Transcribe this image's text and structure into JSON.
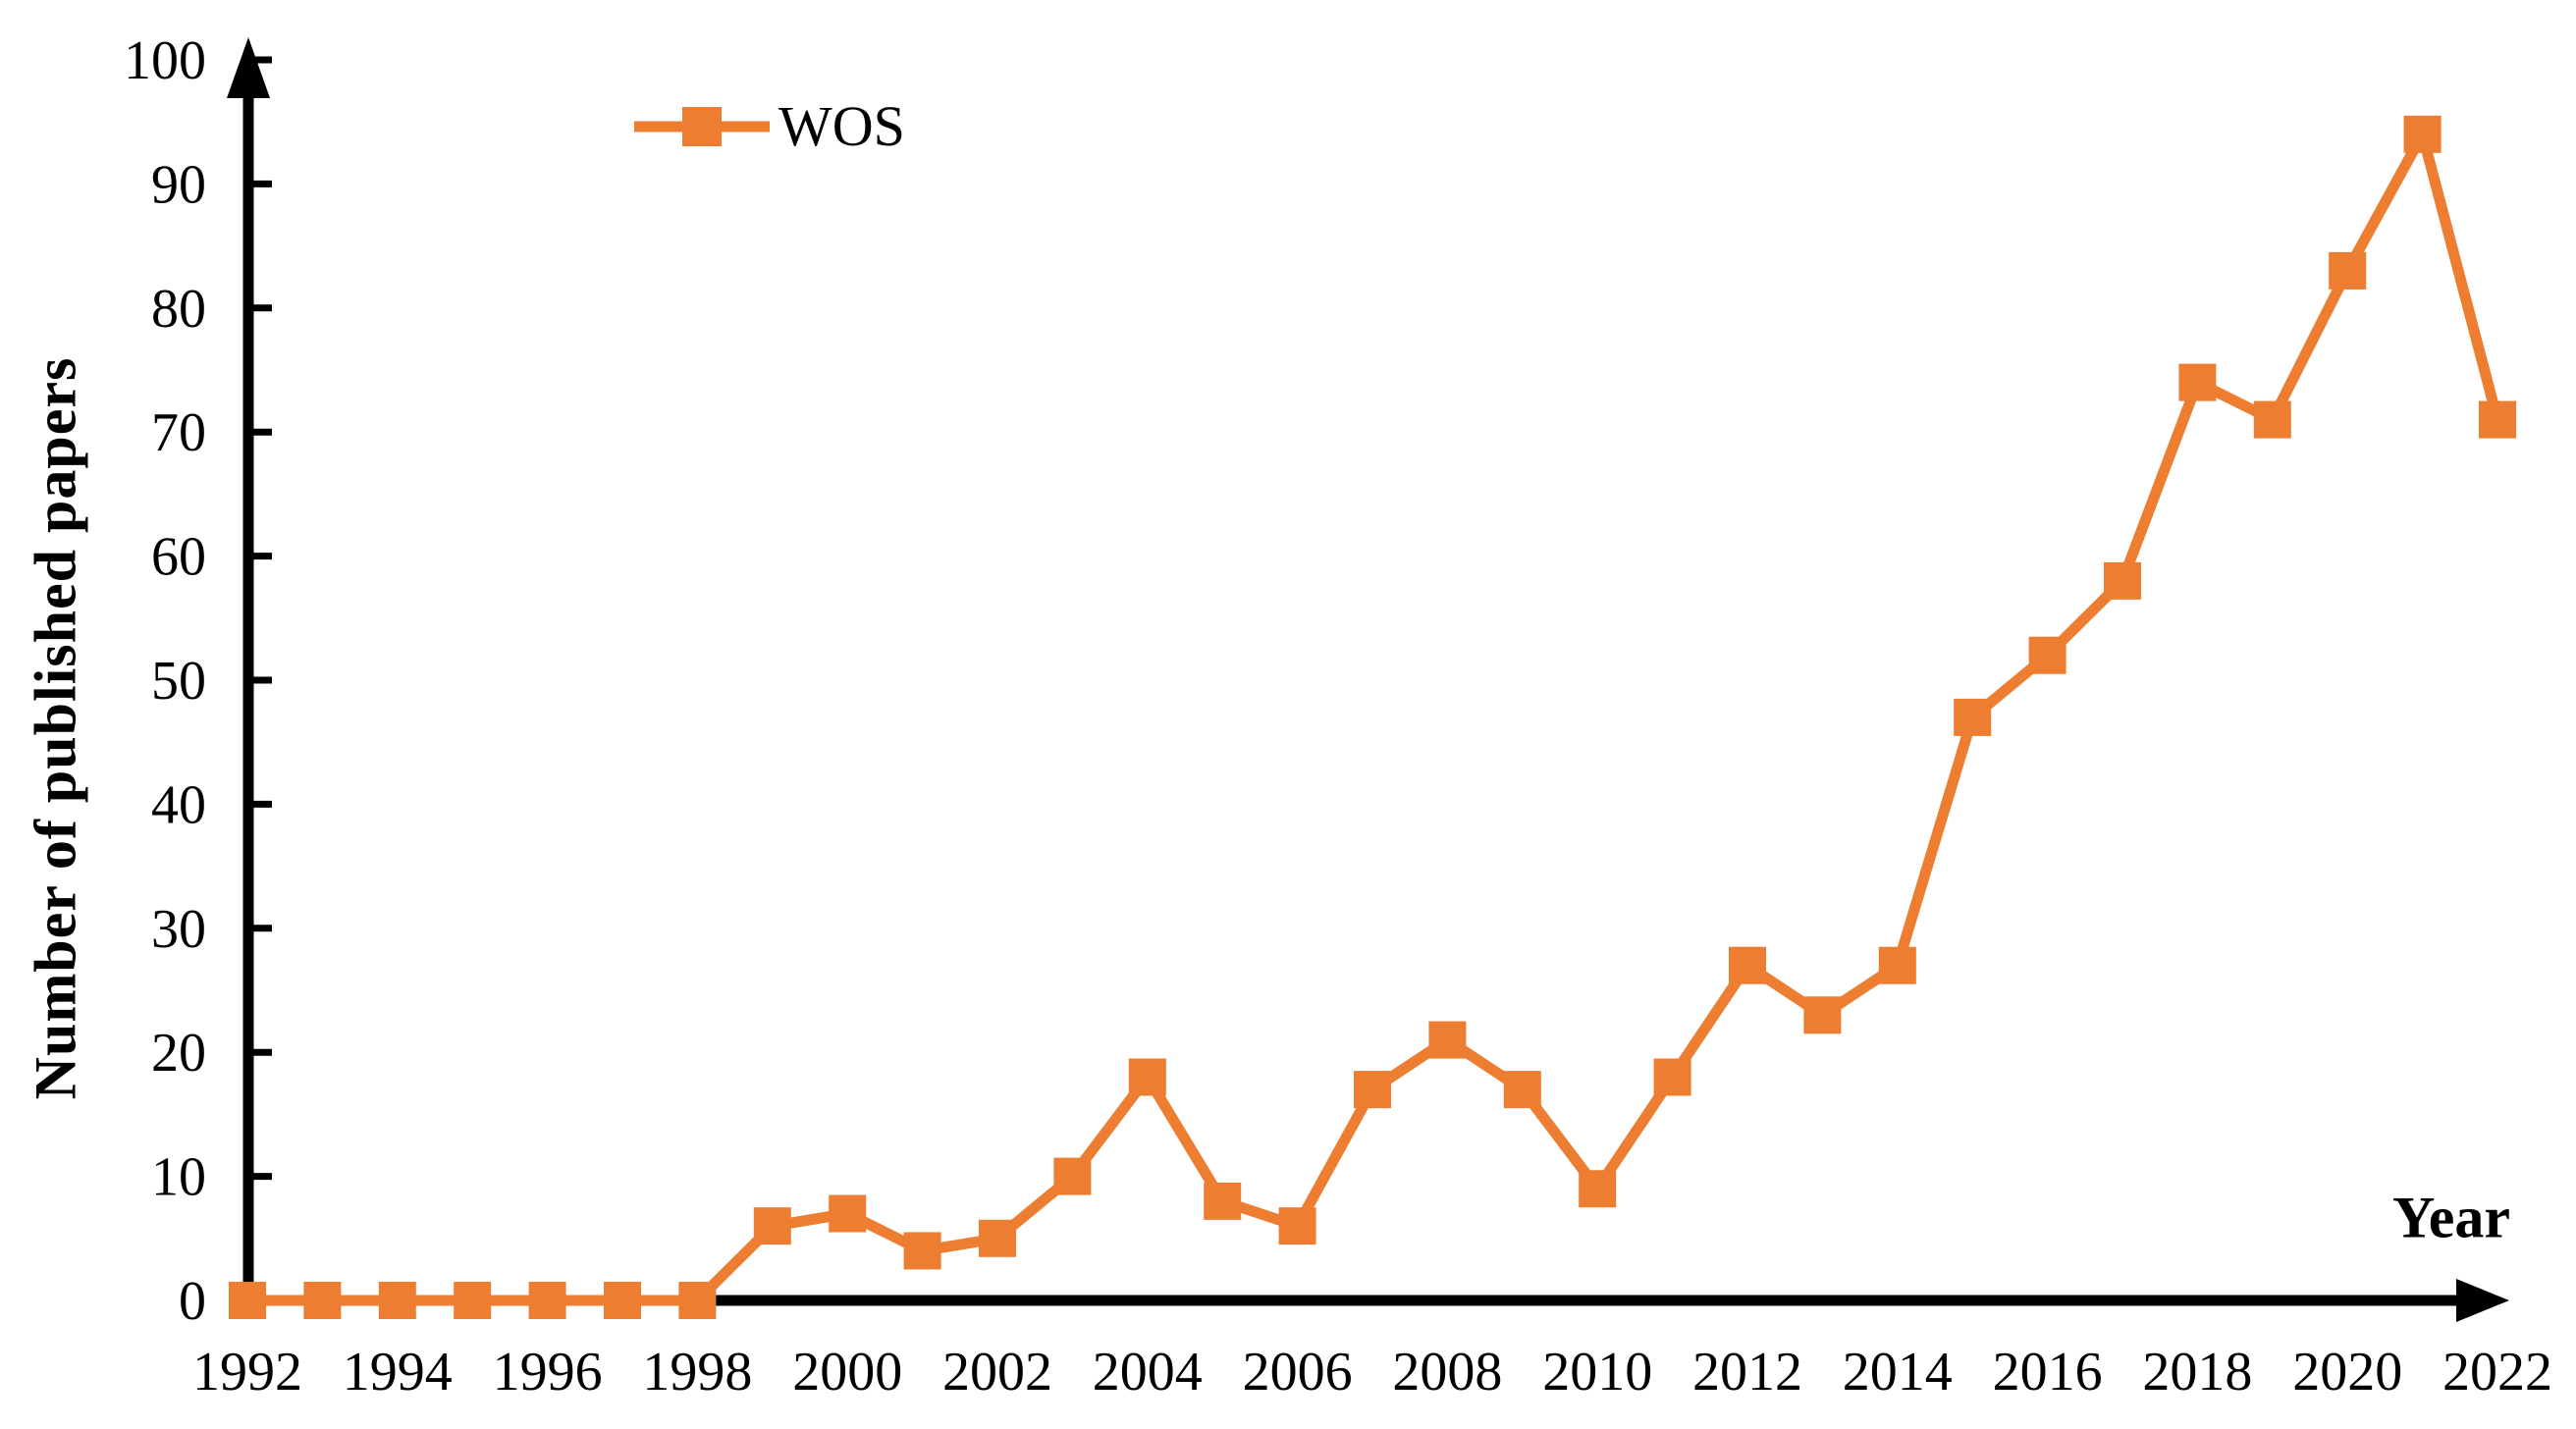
{
  "figure": {
    "legend_label": "WOS",
    "y_axis_title": "Number of published papers",
    "x_axis_title": "Year"
  },
  "colors": {
    "series": "#ED7D31",
    "axis": "#000000",
    "background": "#FFFFFF"
  },
  "chart_data": {
    "type": "line",
    "title": "",
    "xlabel": "Year",
    "ylabel": "Number of published papers",
    "x": [
      1992,
      1993,
      1994,
      1995,
      1996,
      1997,
      1998,
      1999,
      2000,
      2001,
      2002,
      2003,
      2004,
      2005,
      2006,
      2007,
      2008,
      2009,
      2010,
      2011,
      2012,
      2013,
      2014,
      2015,
      2016,
      2017,
      2018,
      2019,
      2020,
      2021,
      2022
    ],
    "series": [
      {
        "name": "WOS",
        "color": "#ED7D31",
        "marker": "square",
        "values": [
          0,
          0,
          0,
          0,
          0,
          0,
          0,
          6,
          7,
          4,
          5,
          10,
          18,
          8,
          6,
          17,
          21,
          17,
          9,
          18,
          27,
          23,
          27,
          47,
          52,
          58,
          74,
          71,
          83,
          94,
          71
        ]
      }
    ],
    "ylim": [
      0,
      100
    ],
    "y_ticks": [
      0,
      10,
      20,
      30,
      40,
      50,
      60,
      70,
      80,
      90,
      100
    ],
    "x_tick_labels": [
      "1992",
      "1994",
      "1996",
      "1998",
      "2000",
      "2002",
      "2004",
      "2006",
      "2008",
      "2010",
      "2012",
      "2014",
      "2016",
      "2018",
      "2020",
      "2022"
    ],
    "grid": false,
    "legend_position": "top-left-inside",
    "axis_arrows": true
  }
}
